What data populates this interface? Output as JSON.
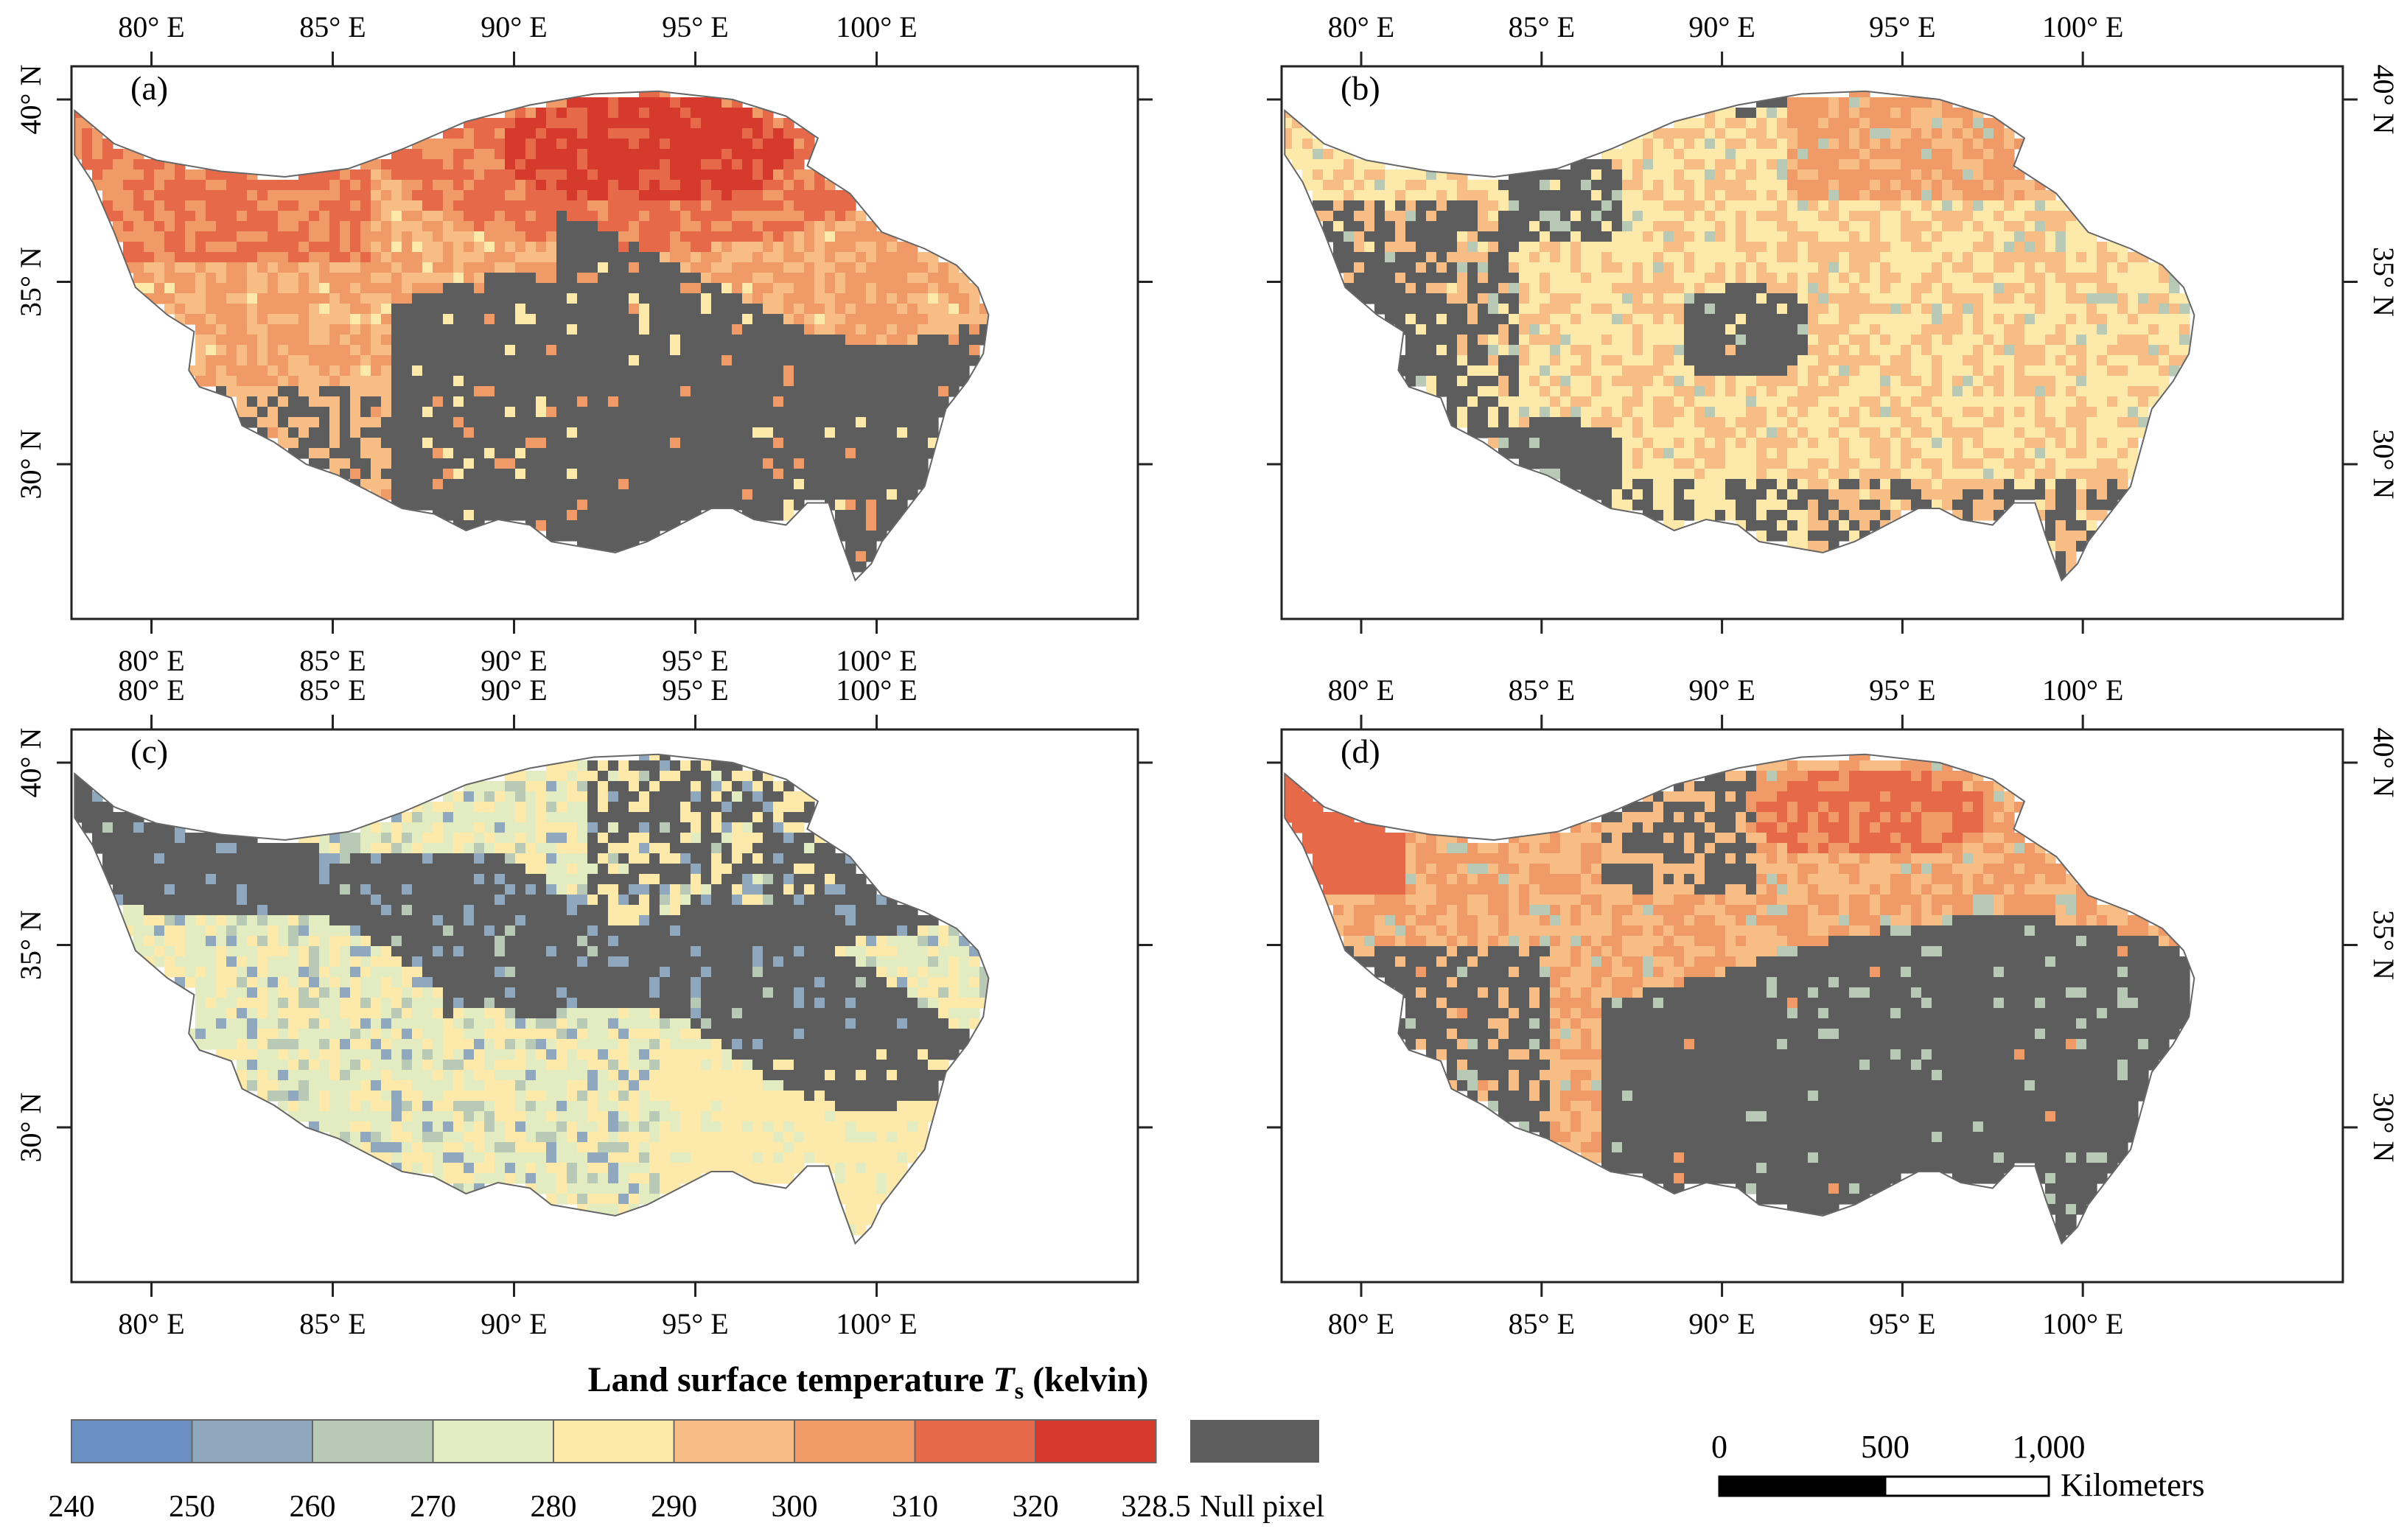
{
  "panels": [
    {
      "label": "(a)",
      "lon_labels": "top,bottom",
      "lat_labels": "left",
      "mode": "hot"
    },
    {
      "label": "(b)",
      "lon_labels": "top",
      "lat_labels": "right",
      "mode": "warm"
    },
    {
      "label": "(c)",
      "lon_labels": "top,bottom",
      "lat_labels": "left",
      "mode": "cool"
    },
    {
      "label": "(d)",
      "lon_labels": "top,bottom",
      "lat_labels": "right",
      "mode": "hot2"
    }
  ],
  "lon_ticks": [
    "80° E",
    "85° E",
    "90° E",
    "95° E",
    "100° E"
  ],
  "lat_ticks": [
    "40° N",
    "35° N",
    "30° N"
  ],
  "legend": {
    "title_prefix": "Land surface temperature ",
    "title_symbol": "T",
    "title_subscript": "s",
    "title_suffix": "  (kelvin)",
    "bins": [
      {
        "lo": "240",
        "color": "#6a8fc1"
      },
      {
        "lo": "250",
        "color": "#8fa8bd"
      },
      {
        "lo": "260",
        "color": "#b8c9b6"
      },
      {
        "lo": "270",
        "color": "#e3ecc0"
      },
      {
        "lo": "280",
        "color": "#fde9a9"
      },
      {
        "lo": "290",
        "color": "#f8bd85"
      },
      {
        "lo": "300",
        "color": "#f09a68"
      },
      {
        "lo": "310",
        "color": "#e66a4a"
      },
      {
        "lo": "320",
        "color": "#d63a2c"
      }
    ],
    "max_label": "328.5",
    "null_label": "Null pixel",
    "null_color": "#5d5d5d"
  },
  "scalebar": {
    "ticks": [
      "0",
      "500",
      "1,000"
    ],
    "unit": "Kilometers"
  }
}
